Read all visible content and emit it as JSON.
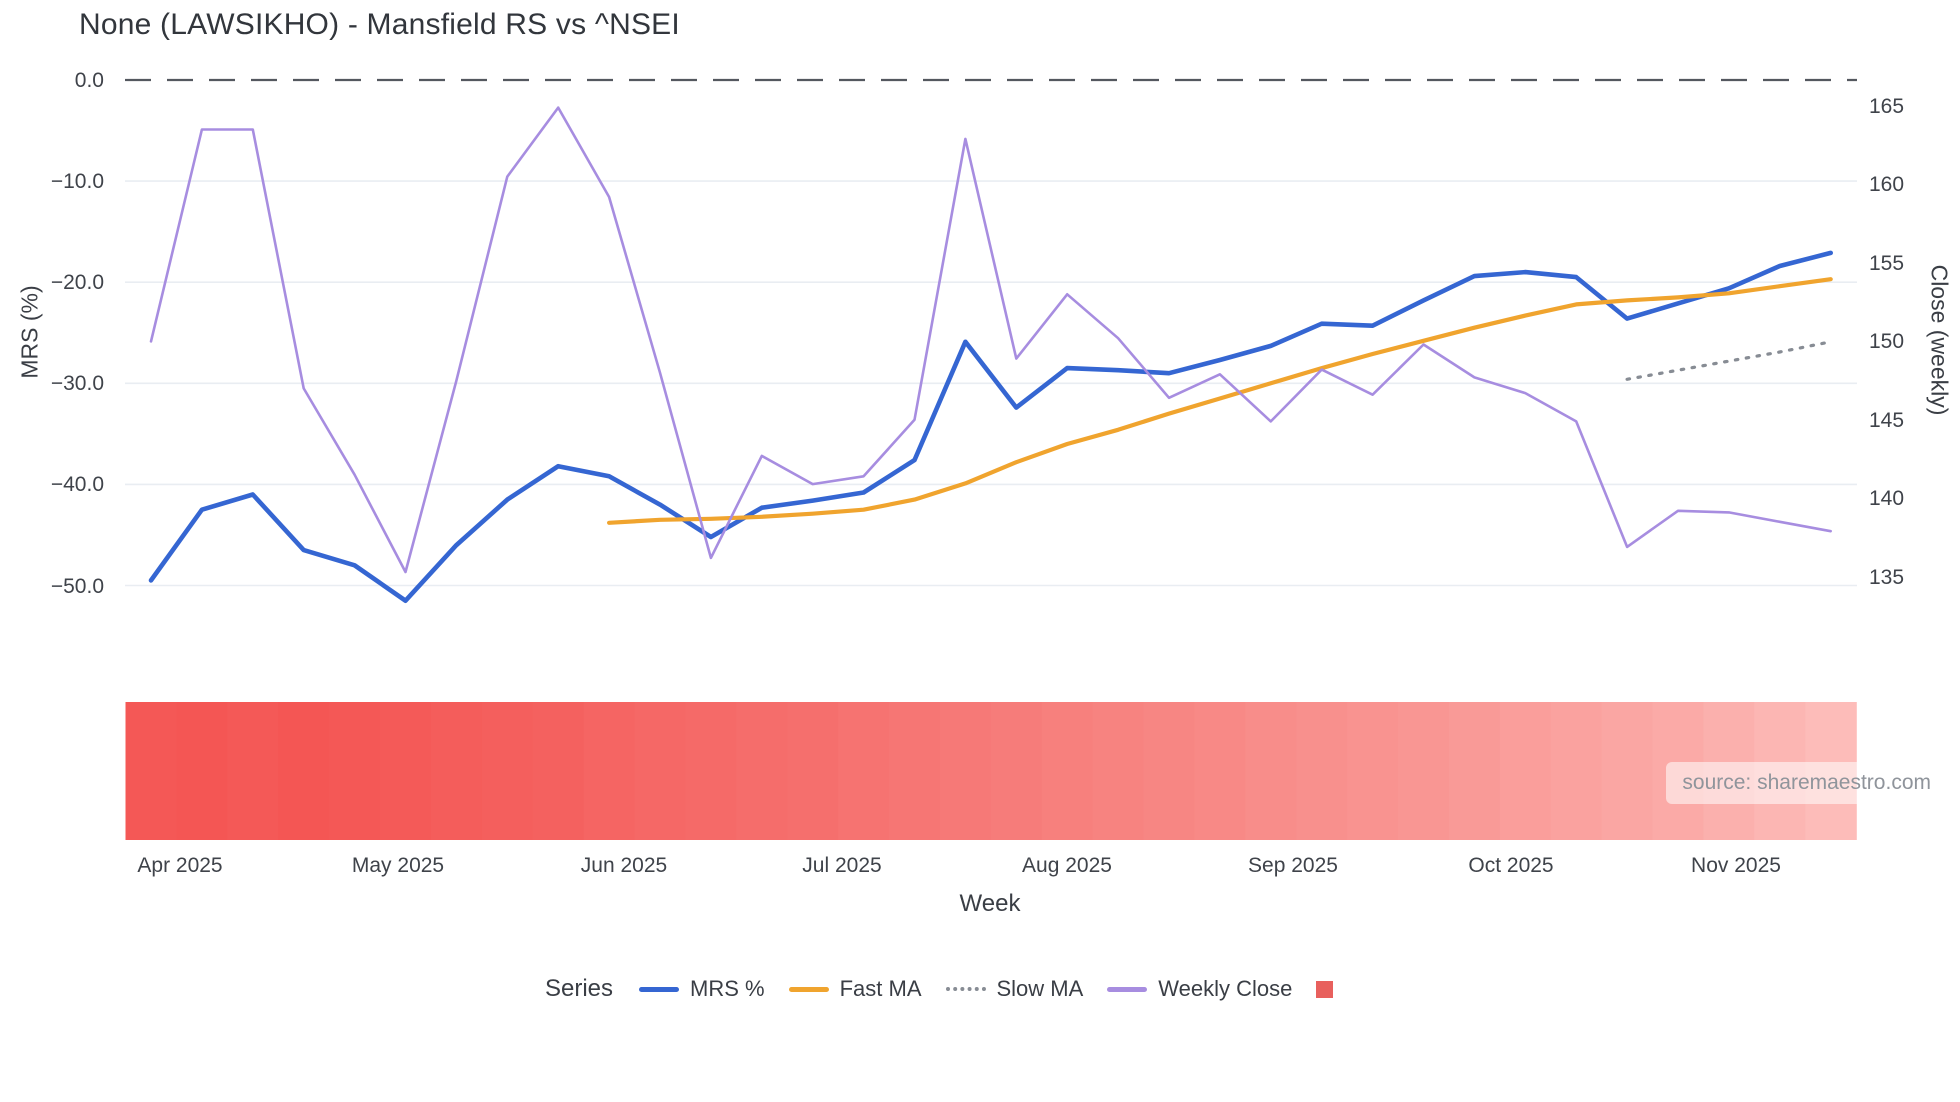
{
  "header": {
    "title": "None (LAWSIKHO) - Mansfield RS vs ^NSEI"
  },
  "source_badge": {
    "text": "source: sharemaestro.com"
  },
  "chart_data": {
    "type": "line",
    "title": "None (LAWSIKHO) - Mansfield RS vs ^NSEI",
    "xlabel": "Week",
    "legend_title": "Series",
    "grid": "horizontal-only",
    "legend_position": "bottom-center",
    "weeks": 34,
    "x_axis": {
      "tick_labels": [
        {
          "label": "Apr 2025",
          "week": 0.571
        },
        {
          "label": "May 2025",
          "week": 4.857
        },
        {
          "label": "Jun 2025",
          "week": 9.286
        },
        {
          "label": "Jul 2025",
          "week": 13.571
        },
        {
          "label": "Aug 2025",
          "week": 18.0
        },
        {
          "label": "Sep 2025",
          "week": 22.429
        },
        {
          "label": "Oct 2025",
          "week": 26.714
        },
        {
          "label": "Nov 2025",
          "week": 31.143
        }
      ]
    },
    "y_left": {
      "label": "MRS (%)",
      "range": [
        -53,
        1
      ],
      "zero_line": {
        "style": "dashed",
        "color": "#54585f"
      },
      "ticks": [
        {
          "label": "0.0",
          "value": 0
        },
        {
          "label": "−10.0",
          "value": -10
        },
        {
          "label": "−20.0",
          "value": -20
        },
        {
          "label": "−30.0",
          "value": -30
        },
        {
          "label": "−40.0",
          "value": -40
        },
        {
          "label": "−50.0",
          "value": -50
        }
      ]
    },
    "y_right": {
      "label": "Close (weekly)",
      "range": [
        133.5,
        166.5
      ],
      "ticks": [
        {
          "label": "165",
          "value": 165
        },
        {
          "label": "160",
          "value": 160
        },
        {
          "label": "155",
          "value": 155
        },
        {
          "label": "150",
          "value": 150
        },
        {
          "label": "145",
          "value": 145
        },
        {
          "label": "140",
          "value": 140
        },
        {
          "label": "135",
          "value": 135
        }
      ]
    },
    "series": [
      {
        "name": "MRS %",
        "axis": "left",
        "color": "#3566d2",
        "style": "solid",
        "width": 4.6,
        "values": [
          -49.5,
          -42.5,
          -41.0,
          -46.5,
          -48.0,
          -51.5,
          -46.0,
          -41.5,
          -38.2,
          -39.2,
          -42.0,
          -45.2,
          -42.3,
          -41.6,
          -40.8,
          -37.6,
          -25.9,
          -32.4,
          -28.5,
          -28.7,
          -29.0,
          -27.7,
          -26.3,
          -24.1,
          -24.3,
          -21.8,
          -19.4,
          -19.0,
          -19.5,
          -23.6,
          -22.1,
          -20.6,
          -18.4,
          -17.1
        ]
      },
      {
        "name": "Fast MA",
        "axis": "left",
        "color": "#f0a42e",
        "style": "solid",
        "width": 4.2,
        "values": [
          null,
          null,
          null,
          null,
          null,
          null,
          null,
          null,
          null,
          -43.8,
          -43.5,
          -43.4,
          -43.2,
          -42.9,
          -42.5,
          -41.5,
          -39.9,
          -37.8,
          -36.0,
          -34.6,
          -33.0,
          -31.5,
          -30.0,
          -28.5,
          -27.1,
          -25.8,
          -24.5,
          -23.3,
          -22.2,
          -21.8,
          -21.5,
          -21.1,
          -20.4,
          -19.7
        ]
      },
      {
        "name": "Slow MA",
        "axis": "left",
        "color": "#878c94",
        "style": "dotted",
        "width": 3.2,
        "values": [
          null,
          null,
          null,
          null,
          null,
          null,
          null,
          null,
          null,
          null,
          null,
          null,
          null,
          null,
          null,
          null,
          null,
          null,
          null,
          null,
          null,
          null,
          null,
          null,
          null,
          null,
          null,
          null,
          null,
          -29.6,
          -28.7,
          -27.8,
          -26.9,
          -25.9
        ]
      },
      {
        "name": "Weekly Close",
        "axis": "right",
        "color": "#a78de0",
        "style": "solid",
        "width": 2.6,
        "values": [
          150.0,
          163.5,
          163.5,
          147.0,
          141.5,
          135.3,
          147.5,
          160.5,
          164.9,
          159.2,
          148.0,
          136.2,
          142.7,
          140.9,
          141.4,
          145.0,
          162.9,
          148.9,
          153.0,
          150.2,
          146.4,
          147.9,
          144.9,
          148.2,
          146.6,
          149.8,
          147.7,
          146.7,
          144.9,
          136.9,
          139.2,
          139.1,
          138.5,
          137.9
        ]
      }
    ],
    "heat_band": {
      "description": "weekly heat strip below plot",
      "legend_swatch_color": "#e8605d",
      "cell_colors": [
        "#f45856",
        "#f45654",
        "#f45957",
        "#f45654",
        "#f45856",
        "#f45a58",
        "#f45d5b",
        "#f45f5d",
        "#f4615f",
        "#f56563",
        "#f56866",
        "#f56a68",
        "#f56d6b",
        "#f56f6d",
        "#f67371",
        "#f67674",
        "#f67977",
        "#f67c7a",
        "#f7807d",
        "#f78380",
        "#f78683",
        "#f88986",
        "#f88d8a",
        "#f8908d",
        "#f99390",
        "#f99693",
        "#f99a97",
        "#fa9e9b",
        "#faa29f",
        "#faa6a3",
        "#fbaaa7",
        "#fbb0ad",
        "#fcb6b3",
        "#fdbcb9"
      ]
    },
    "colors": {
      "gridline": "#e9edf2",
      "zero_dash": "#54585f",
      "text": "#3a3e45",
      "tick_text": "#3f434a",
      "source_text": "#8f949b"
    }
  }
}
